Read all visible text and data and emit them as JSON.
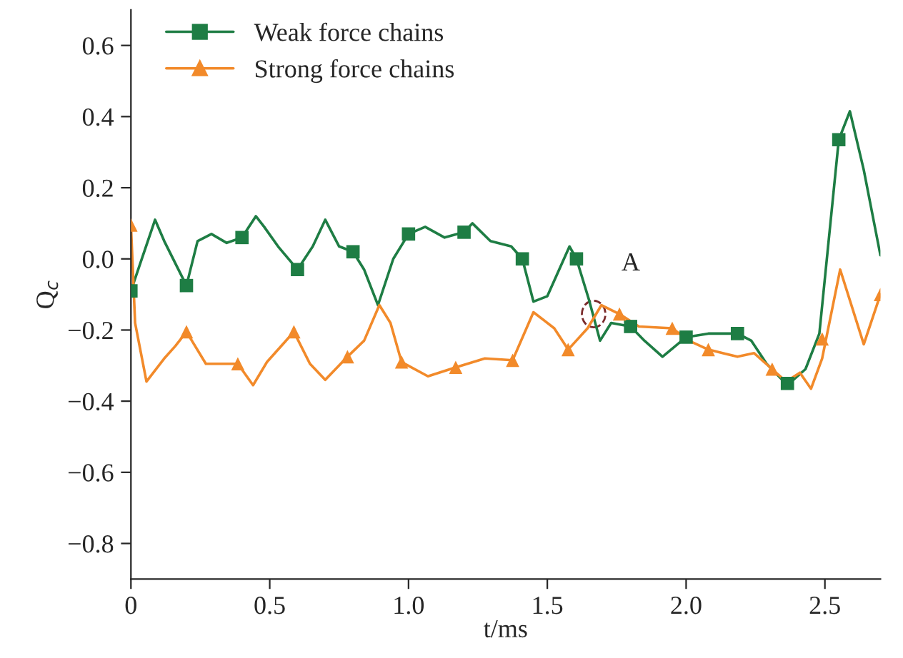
{
  "chart_data": {
    "type": "line",
    "xlabel": "t/ms",
    "ylabel": "Q$_{c}$",
    "xlim": [
      0,
      2.7
    ],
    "ylim": [
      -0.9,
      0.7
    ],
    "xticks": [
      0,
      0.5,
      {
        "value": 1.0,
        "label": "1.0"
      },
      1.5,
      {
        "value": 2.0,
        "label": "2.0"
      },
      2.5
    ],
    "yticks": [
      {
        "value": -0.8,
        "label": "−0.8"
      },
      {
        "value": -0.6,
        "label": "−0.6"
      },
      {
        "value": -0.4,
        "label": "−0.4"
      },
      {
        "value": -0.2,
        "label": "−0.2"
      },
      {
        "value": 0.0,
        "label": "0.0"
      },
      0.2,
      0.4,
      0.6
    ],
    "grid": false,
    "legend": "top left",
    "annotations": [
      {
        "text": "A",
        "x": 1.667,
        "y": -0.155
      }
    ],
    "series": [
      {
        "name": "Weak force chains",
        "color": "#1e7d44",
        "marker": "none",
        "x": [
          0,
          0.087,
          0.12,
          0.2,
          0.24,
          0.29,
          0.345,
          0.4,
          0.45,
          0.48,
          0.53,
          0.6,
          0.655,
          0.7,
          0.75,
          0.8,
          0.84,
          0.89,
          0.945,
          1.0,
          1.06,
          1.13,
          1.2,
          1.23,
          1.295,
          1.37,
          1.41,
          1.45,
          1.5,
          1.58,
          1.605,
          1.65,
          1.69,
          1.73,
          1.8,
          1.85,
          1.915,
          2.0,
          2.08,
          2.185,
          2.235,
          2.29,
          2.365,
          2.43,
          2.48,
          2.55,
          2.59,
          2.64,
          2.7
        ],
        "values": [
          -0.09,
          0.11,
          0.05,
          -0.075,
          0.05,
          0.07,
          0.045,
          0.06,
          0.12,
          0.09,
          0.035,
          -0.03,
          0.035,
          0.11,
          0.035,
          0.02,
          -0.03,
          -0.13,
          0.0,
          0.07,
          0.09,
          0.06,
          0.075,
          0.1,
          0.05,
          0.035,
          0.0,
          -0.12,
          -0.105,
          0.035,
          0.0,
          -0.115,
          -0.23,
          -0.18,
          -0.19,
          -0.23,
          -0.275,
          -0.22,
          -0.21,
          -0.21,
          -0.23,
          -0.295,
          -0.355,
          -0.31,
          -0.21,
          0.335,
          0.415,
          0.25,
          0.01
        ]
      },
      {
        "type": "scatter",
        "color": "#1e7d44",
        "marker": "square",
        "x": [
          0,
          0.2,
          0.4,
          0.6,
          0.8,
          1.0,
          1.2,
          1.41,
          1.605,
          1.8,
          2.0,
          2.185,
          2.365,
          2.55
        ],
        "values": [
          -0.09,
          -0.075,
          0.06,
          -0.03,
          0.02,
          0.07,
          0.075,
          0.0,
          0.0,
          -0.19,
          -0.22,
          -0.21,
          -0.35,
          0.335
        ]
      },
      {
        "name": "Strong force chains",
        "color": "#f28a2a",
        "marker": "none",
        "x": [
          0,
          0.015,
          0.056,
          0.12,
          0.16,
          0.2,
          0.27,
          0.385,
          0.44,
          0.49,
          0.587,
          0.645,
          0.7,
          0.78,
          0.84,
          0.895,
          0.935,
          0.975,
          1.07,
          1.17,
          1.275,
          1.375,
          1.45,
          1.525,
          1.575,
          1.645,
          1.695,
          1.76,
          1.83,
          1.95,
          2.01,
          2.08,
          2.185,
          2.245,
          2.31,
          2.36,
          2.41,
          2.45,
          2.49,
          2.555,
          2.64,
          2.7
        ],
        "values": [
          0.095,
          -0.18,
          -0.345,
          -0.28,
          -0.245,
          -0.205,
          -0.295,
          -0.295,
          -0.355,
          -0.29,
          -0.205,
          -0.295,
          -0.34,
          -0.275,
          -0.23,
          -0.13,
          -0.18,
          -0.29,
          -0.33,
          -0.305,
          -0.28,
          -0.285,
          -0.15,
          -0.195,
          -0.255,
          -0.195,
          -0.13,
          -0.155,
          -0.19,
          -0.195,
          -0.23,
          -0.255,
          -0.275,
          -0.265,
          -0.31,
          -0.345,
          -0.32,
          -0.365,
          -0.28,
          -0.03,
          -0.24,
          -0.1
        ]
      },
      {
        "type": "scatter",
        "color": "#f28a2a",
        "marker": "triangle",
        "x": [
          0,
          0.2,
          0.385,
          0.587,
          0.78,
          0.975,
          1.17,
          1.375,
          1.575,
          1.76,
          1.95,
          2.08,
          2.31,
          2.49,
          2.7
        ],
        "values": [
          0.095,
          -0.205,
          -0.295,
          -0.205,
          -0.275,
          -0.29,
          -0.305,
          -0.285,
          -0.255,
          -0.155,
          -0.195,
          -0.255,
          -0.31,
          -0.225,
          -0.1
        ]
      }
    ]
  }
}
